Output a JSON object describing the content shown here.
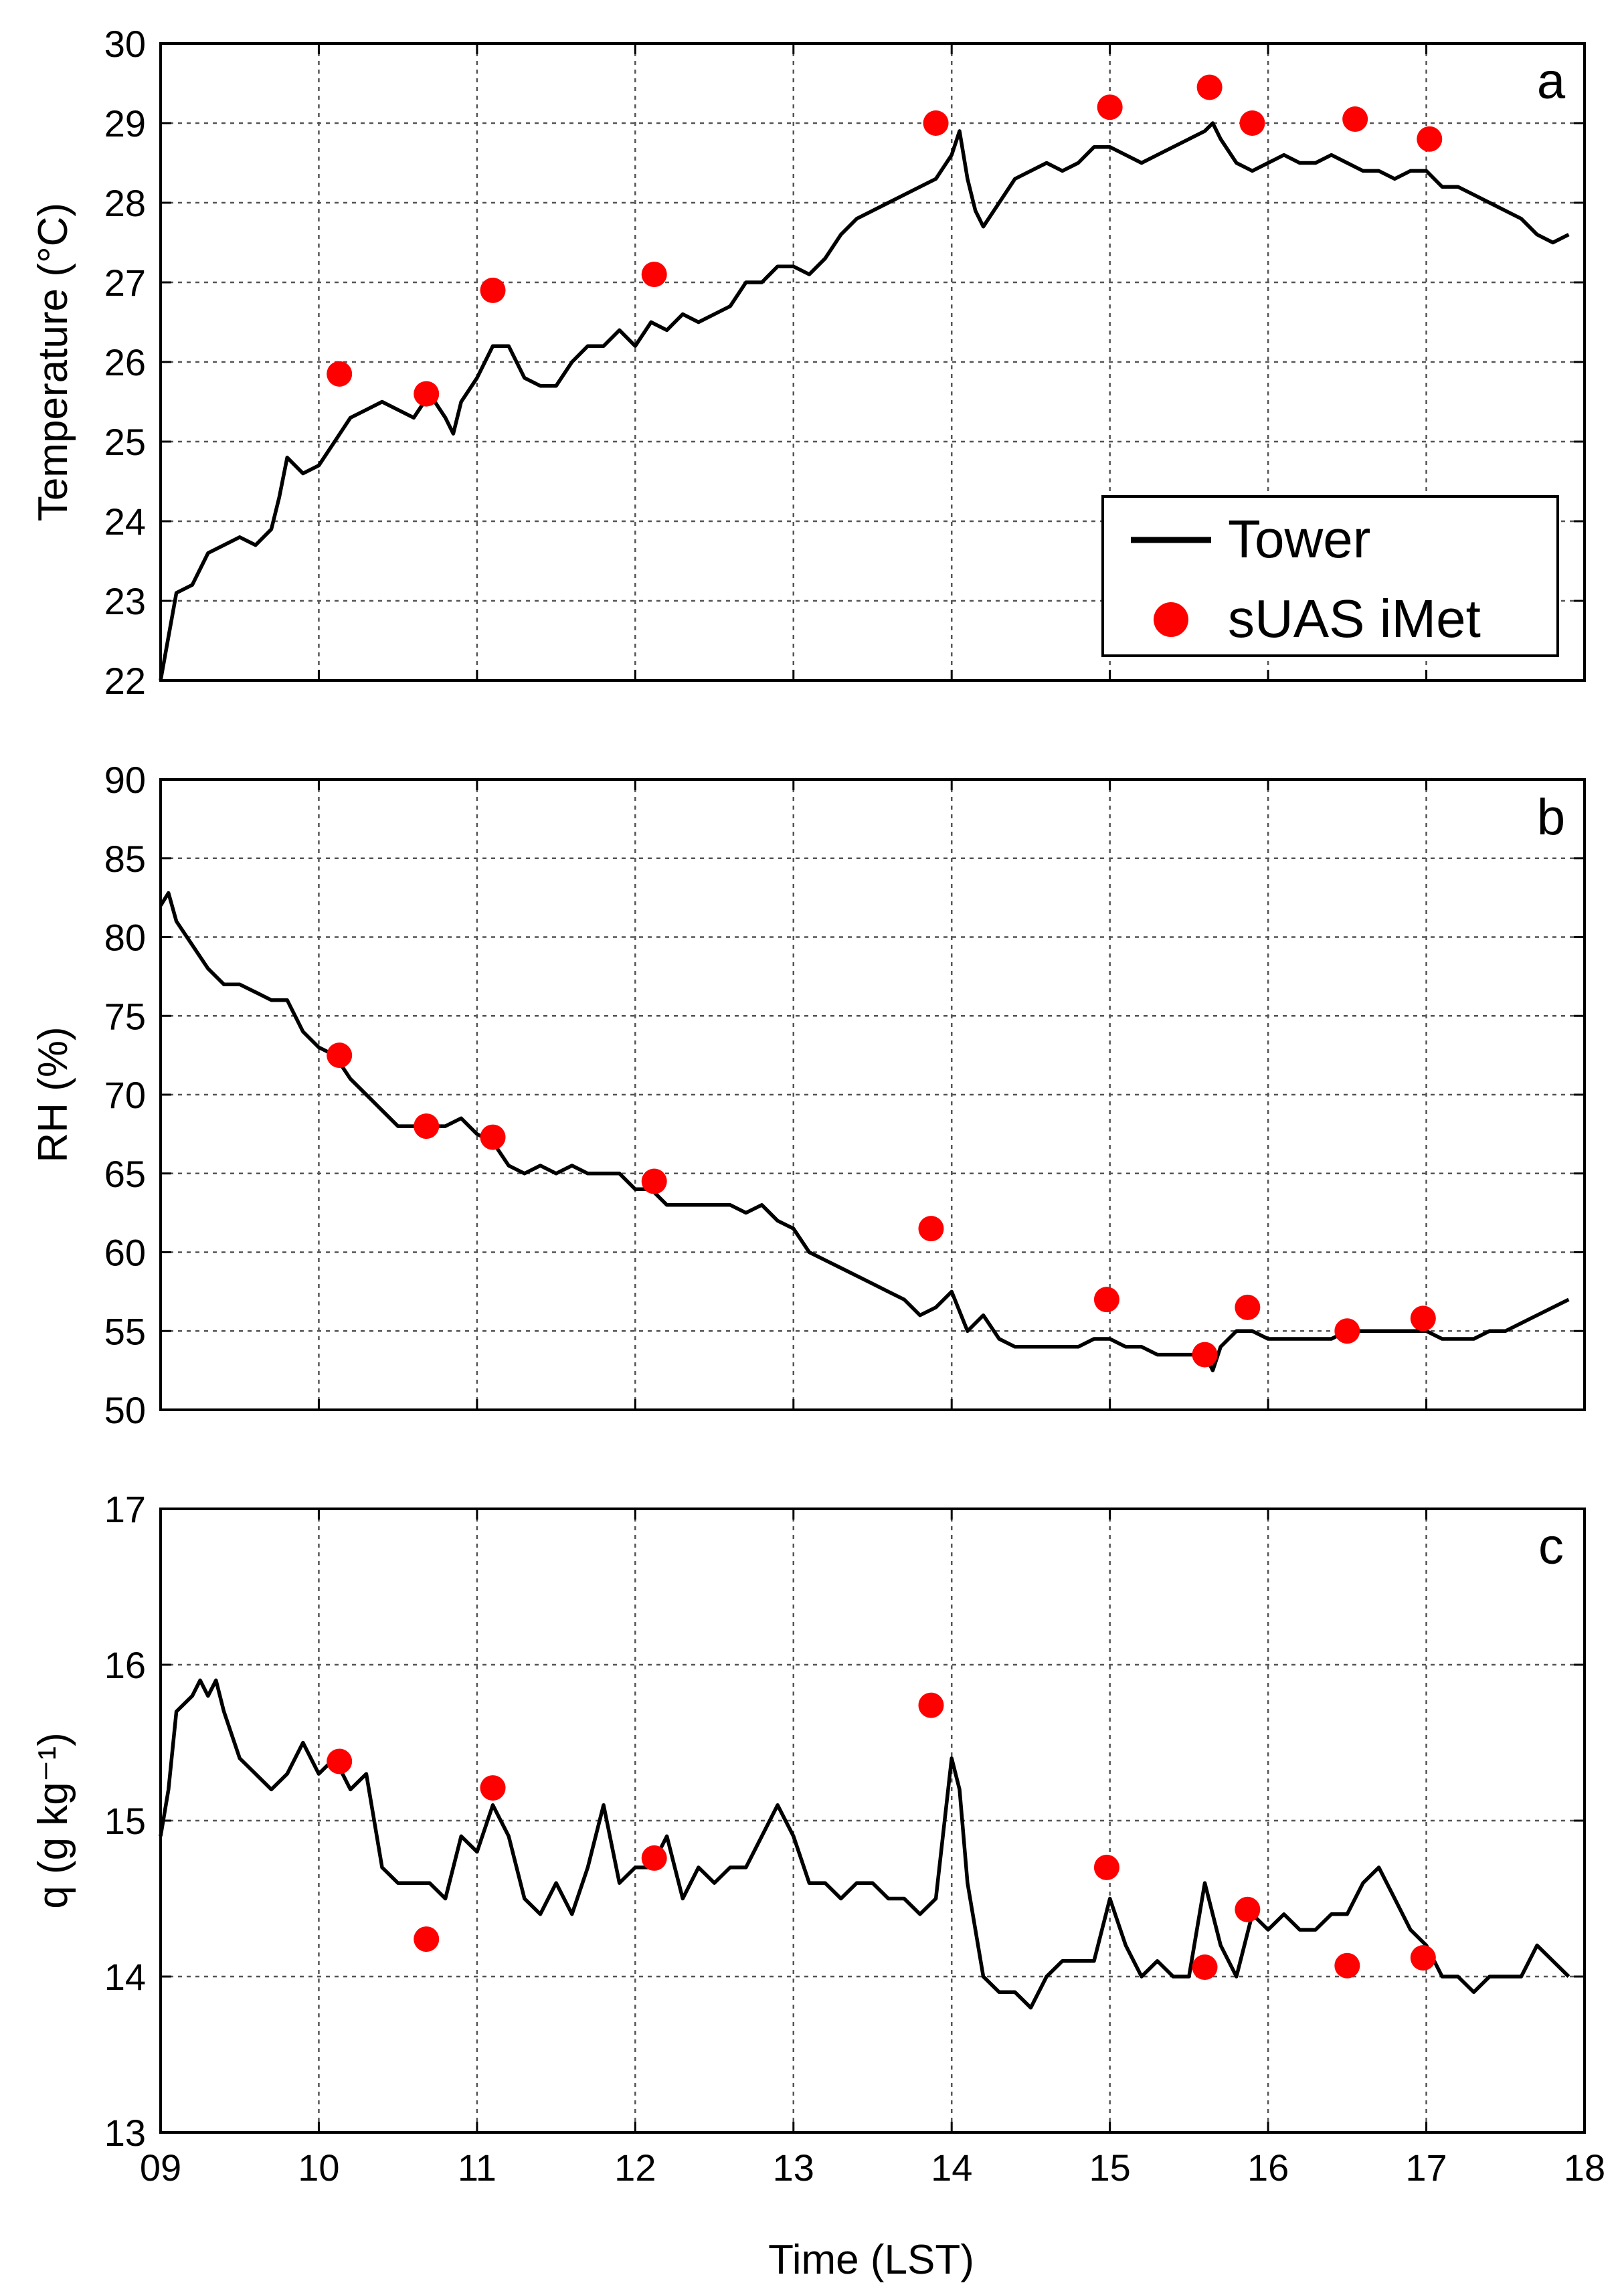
{
  "figure": {
    "x_axis_label": "Time (LST)",
    "x_ticks": [
      "09",
      "10",
      "11",
      "12",
      "13",
      "14",
      "15",
      "16",
      "17",
      "18"
    ],
    "legend": {
      "tower_label": "Tower",
      "suas_label": "sUAS iMet",
      "tower_color": "#000000",
      "suas_color": "#ff0000"
    }
  },
  "chart_data": [
    {
      "panel": "a",
      "type": "line",
      "ylabel": "Temperature (°C)",
      "xlim": [
        9,
        18
      ],
      "ylim": [
        22,
        30
      ],
      "y_ticks": [
        22,
        23,
        24,
        25,
        26,
        27,
        28,
        29,
        30
      ],
      "grid": true,
      "legend_placement": "lower-right",
      "series": [
        {
          "name": "Tower",
          "type": "line",
          "x": [
            9.0,
            9.1,
            9.2,
            9.3,
            9.4,
            9.5,
            9.6,
            9.7,
            9.75,
            9.8,
            9.9,
            10.0,
            10.1,
            10.2,
            10.3,
            10.4,
            10.5,
            10.6,
            10.7,
            10.8,
            10.85,
            10.9,
            11.0,
            11.1,
            11.2,
            11.3,
            11.4,
            11.5,
            11.6,
            11.7,
            11.8,
            11.9,
            12.0,
            12.1,
            12.2,
            12.3,
            12.4,
            12.5,
            12.6,
            12.7,
            12.8,
            12.9,
            13.0,
            13.1,
            13.2,
            13.3,
            13.4,
            13.5,
            13.6,
            13.7,
            13.8,
            13.9,
            14.0,
            14.05,
            14.1,
            14.15,
            14.2,
            14.3,
            14.4,
            14.5,
            14.6,
            14.7,
            14.8,
            14.9,
            15.0,
            15.1,
            15.2,
            15.3,
            15.4,
            15.5,
            15.6,
            15.65,
            15.7,
            15.8,
            15.9,
            16.0,
            16.1,
            16.2,
            16.3,
            16.4,
            16.5,
            16.6,
            16.7,
            16.8,
            16.9,
            17.0,
            17.1,
            17.2,
            17.3,
            17.4,
            17.5,
            17.6,
            17.7,
            17.8,
            17.9
          ],
          "y": [
            22.0,
            23.1,
            23.2,
            23.6,
            23.7,
            23.8,
            23.7,
            23.9,
            24.3,
            24.8,
            24.6,
            24.7,
            25.0,
            25.3,
            25.4,
            25.5,
            25.4,
            25.3,
            25.6,
            25.3,
            25.1,
            25.5,
            25.8,
            26.2,
            26.2,
            25.8,
            25.7,
            25.7,
            26.0,
            26.2,
            26.2,
            26.4,
            26.2,
            26.5,
            26.4,
            26.6,
            26.5,
            26.6,
            26.7,
            27.0,
            27.0,
            27.2,
            27.2,
            27.1,
            27.3,
            27.6,
            27.8,
            27.9,
            28.0,
            28.1,
            28.2,
            28.3,
            28.6,
            28.9,
            28.3,
            27.9,
            27.7,
            28.0,
            28.3,
            28.4,
            28.5,
            28.4,
            28.5,
            28.7,
            28.7,
            28.6,
            28.5,
            28.6,
            28.7,
            28.8,
            28.9,
            29.0,
            28.8,
            28.5,
            28.4,
            28.5,
            28.6,
            28.5,
            28.5,
            28.6,
            28.5,
            28.4,
            28.4,
            28.3,
            28.4,
            28.4,
            28.2,
            28.2,
            28.1,
            28.0,
            27.9,
            27.8,
            27.6,
            27.5,
            27.6
          ]
        },
        {
          "name": "sUAS iMet",
          "type": "scatter",
          "x": [
            10.13,
            10.68,
            11.1,
            12.12,
            13.9,
            15.0,
            15.63,
            15.9,
            16.55,
            17.02
          ],
          "y": [
            25.85,
            25.6,
            26.9,
            27.1,
            29.0,
            29.2,
            29.45,
            29.0,
            29.05,
            28.8
          ]
        }
      ]
    },
    {
      "panel": "b",
      "type": "line",
      "ylabel": "RH (%)",
      "xlim": [
        9,
        18
      ],
      "ylim": [
        50,
        90
      ],
      "y_ticks": [
        50,
        55,
        60,
        65,
        70,
        75,
        80,
        85,
        90
      ],
      "grid": true,
      "series": [
        {
          "name": "Tower",
          "type": "line",
          "x": [
            9.0,
            9.05,
            9.1,
            9.2,
            9.3,
            9.4,
            9.5,
            9.6,
            9.7,
            9.8,
            9.9,
            10.0,
            10.1,
            10.2,
            10.3,
            10.4,
            10.5,
            10.6,
            10.7,
            10.8,
            10.9,
            11.0,
            11.1,
            11.2,
            11.3,
            11.4,
            11.5,
            11.6,
            11.7,
            11.8,
            11.9,
            12.0,
            12.1,
            12.2,
            12.3,
            12.4,
            12.5,
            12.6,
            12.7,
            12.8,
            12.9,
            13.0,
            13.1,
            13.2,
            13.3,
            13.4,
            13.5,
            13.6,
            13.7,
            13.8,
            13.9,
            14.0,
            14.1,
            14.2,
            14.3,
            14.4,
            14.5,
            14.6,
            14.7,
            14.8,
            14.9,
            15.0,
            15.1,
            15.2,
            15.3,
            15.4,
            15.5,
            15.6,
            15.65,
            15.7,
            15.8,
            15.9,
            16.0,
            16.1,
            16.2,
            16.3,
            16.4,
            16.5,
            16.6,
            16.7,
            16.8,
            16.9,
            17.0,
            17.1,
            17.2,
            17.3,
            17.4,
            17.5,
            17.6,
            17.7,
            17.8,
            17.9
          ],
          "y": [
            82.0,
            82.8,
            81.0,
            79.5,
            78.0,
            77.0,
            77.0,
            76.5,
            76.0,
            76.0,
            74.0,
            73.0,
            72.5,
            71.0,
            70.0,
            69.0,
            68.0,
            68.0,
            68.0,
            68.0,
            68.5,
            67.5,
            67.0,
            65.5,
            65.0,
            65.5,
            65.0,
            65.5,
            65.0,
            65.0,
            65.0,
            64.0,
            64.0,
            63.0,
            63.0,
            63.0,
            63.0,
            63.0,
            62.5,
            63.0,
            62.0,
            61.5,
            60.0,
            59.5,
            59.0,
            58.5,
            58.0,
            57.5,
            57.0,
            56.0,
            56.5,
            57.5,
            55.0,
            56.0,
            54.5,
            54.0,
            54.0,
            54.0,
            54.0,
            54.0,
            54.5,
            54.5,
            54.0,
            54.0,
            53.5,
            53.5,
            53.5,
            53.5,
            52.5,
            54.0,
            55.0,
            55.0,
            54.5,
            54.5,
            54.5,
            54.5,
            54.5,
            55.0,
            55.0,
            55.0,
            55.0,
            55.0,
            55.0,
            54.5,
            54.5,
            54.5,
            55.0,
            55.0,
            55.5,
            56.0,
            56.5,
            57.0
          ]
        },
        {
          "name": "sUAS iMet",
          "type": "scatter",
          "x": [
            10.13,
            10.68,
            11.1,
            12.12,
            13.87,
            14.98,
            15.6,
            15.87,
            16.5,
            16.98
          ],
          "y": [
            72.5,
            68.0,
            67.3,
            64.5,
            61.5,
            57.0,
            53.5,
            56.5,
            55.0,
            55.8
          ]
        }
      ]
    },
    {
      "panel": "c",
      "type": "line",
      "ylabel": "q (g kg⁻¹)",
      "xlim": [
        9,
        18
      ],
      "ylim": [
        13,
        17
      ],
      "y_ticks": [
        13,
        14,
        15,
        16,
        17
      ],
      "grid": true,
      "series": [
        {
          "name": "Tower",
          "type": "line",
          "x": [
            9.0,
            9.05,
            9.1,
            9.2,
            9.25,
            9.3,
            9.35,
            9.4,
            9.5,
            9.6,
            9.7,
            9.8,
            9.9,
            10.0,
            10.1,
            10.2,
            10.3,
            10.4,
            10.5,
            10.6,
            10.7,
            10.8,
            10.9,
            11.0,
            11.1,
            11.2,
            11.3,
            11.4,
            11.5,
            11.6,
            11.7,
            11.8,
            11.9,
            12.0,
            12.1,
            12.2,
            12.3,
            12.4,
            12.5,
            12.6,
            12.7,
            12.8,
            12.9,
            13.0,
            13.1,
            13.2,
            13.3,
            13.4,
            13.5,
            13.6,
            13.7,
            13.8,
            13.9,
            14.0,
            14.05,
            14.1,
            14.2,
            14.3,
            14.4,
            14.5,
            14.6,
            14.7,
            14.8,
            14.9,
            15.0,
            15.1,
            15.2,
            15.3,
            15.4,
            15.5,
            15.6,
            15.7,
            15.8,
            15.9,
            16.0,
            16.1,
            16.2,
            16.3,
            16.4,
            16.5,
            16.6,
            16.7,
            16.8,
            16.9,
            17.0,
            17.1,
            17.2,
            17.3,
            17.4,
            17.5,
            17.6,
            17.7,
            17.8,
            17.9
          ],
          "y": [
            14.9,
            15.2,
            15.7,
            15.8,
            15.9,
            15.8,
            15.9,
            15.7,
            15.4,
            15.3,
            15.2,
            15.3,
            15.5,
            15.3,
            15.4,
            15.2,
            15.3,
            14.7,
            14.6,
            14.6,
            14.6,
            14.5,
            14.9,
            14.8,
            15.1,
            14.9,
            14.5,
            14.4,
            14.6,
            14.4,
            14.7,
            15.1,
            14.6,
            14.7,
            14.7,
            14.9,
            14.5,
            14.7,
            14.6,
            14.7,
            14.7,
            14.9,
            15.1,
            14.9,
            14.6,
            14.6,
            14.5,
            14.6,
            14.6,
            14.5,
            14.5,
            14.4,
            14.5,
            15.4,
            15.2,
            14.6,
            14.0,
            13.9,
            13.9,
            13.8,
            14.0,
            14.1,
            14.1,
            14.1,
            14.5,
            14.2,
            14.0,
            14.1,
            14.0,
            14.0,
            14.6,
            14.2,
            14.0,
            14.4,
            14.3,
            14.4,
            14.3,
            14.3,
            14.4,
            14.4,
            14.6,
            14.7,
            14.5,
            14.3,
            14.2,
            14.0,
            14.0,
            13.9,
            14.0,
            14.0,
            14.0,
            14.2,
            14.1,
            14.0
          ]
        },
        {
          "name": "sUAS iMet",
          "type": "scatter",
          "x": [
            10.13,
            10.68,
            11.1,
            12.12,
            13.87,
            14.98,
            15.6,
            15.87,
            16.5,
            16.98
          ],
          "y": [
            15.38,
            14.24,
            15.21,
            14.76,
            15.74,
            14.7,
            14.06,
            14.43,
            14.07,
            14.12
          ]
        }
      ]
    }
  ]
}
